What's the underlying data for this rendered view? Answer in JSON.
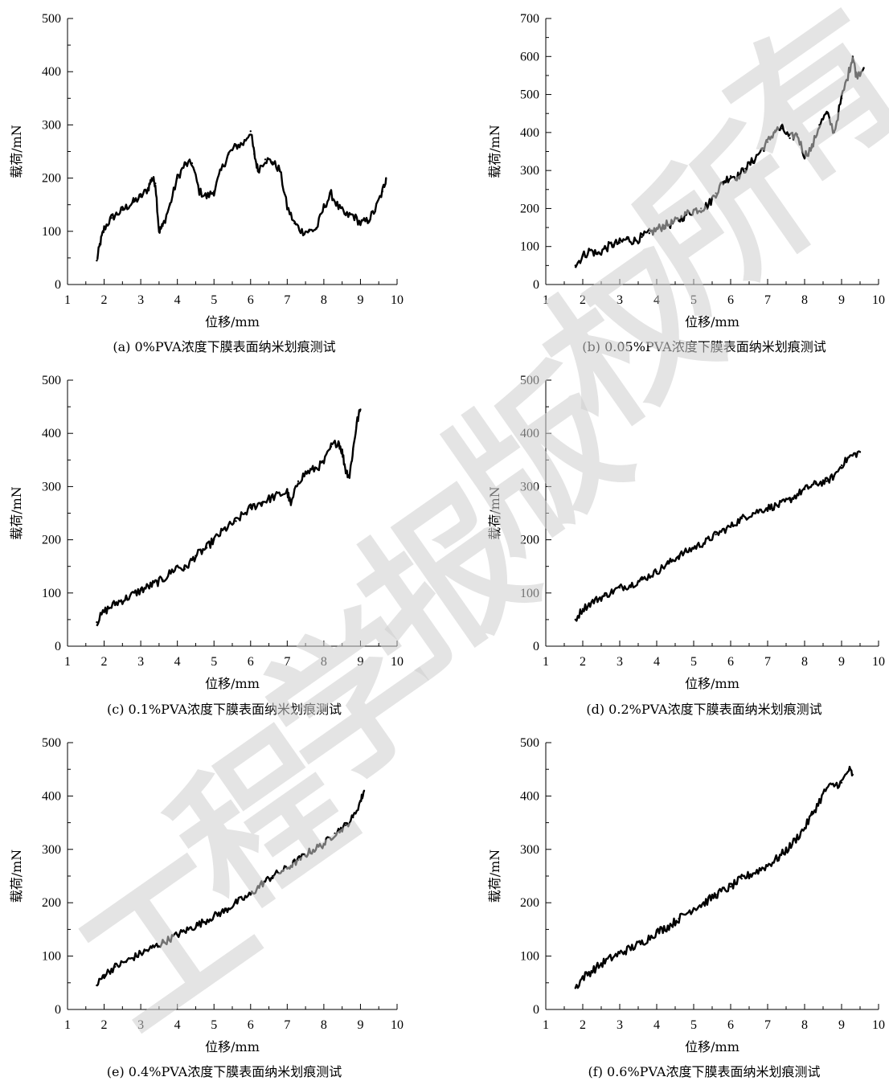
{
  "watermark": {
    "text": "工程学报版权所有",
    "color": "#d0d0d0"
  },
  "chart_data": [
    {
      "type": "line",
      "caption": "(a) 0%PVA浓度下膜表面纳米划痕测试",
      "xlabel": "位移/mm",
      "ylabel": "载荷/mN",
      "xlim": [
        1,
        10
      ],
      "ylim": [
        0,
        500
      ],
      "xticks": [
        1,
        2,
        3,
        4,
        5,
        6,
        7,
        8,
        9,
        10
      ],
      "yticks": [
        0,
        100,
        200,
        300,
        400,
        500
      ],
      "noise": 8,
      "color": "#000000",
      "series": [
        {
          "x": [
            1.8,
            1.9,
            2.0,
            2.2,
            2.5,
            2.8,
            3.0,
            3.2,
            3.3,
            3.4,
            3.5,
            3.6,
            3.8,
            4.0,
            4.2,
            4.4,
            4.6,
            4.8,
            5.0,
            5.2,
            5.4,
            5.6,
            5.8,
            6.0,
            6.1,
            6.2,
            6.4,
            6.6,
            6.8,
            7.0,
            7.2,
            7.4,
            7.6,
            7.8,
            8.0,
            8.2,
            8.4,
            8.6,
            8.8,
            9.0,
            9.2,
            9.4,
            9.6,
            9.7
          ],
          "y": [
            45,
            80,
            105,
            125,
            140,
            155,
            165,
            180,
            200,
            190,
            100,
            110,
            150,
            200,
            225,
            228,
            175,
            165,
            175,
            215,
            245,
            260,
            265,
            288,
            245,
            215,
            235,
            230,
            215,
            145,
            115,
            100,
            100,
            105,
            145,
            170,
            145,
            130,
            130,
            115,
            120,
            140,
            175,
            200
          ]
        }
      ]
    },
    {
      "type": "line",
      "caption": "(b) 0.05%PVA浓度下膜表面纳米划痕测试",
      "xlabel": "位移/mm",
      "ylabel": "载荷/mN",
      "xlim": [
        1,
        10
      ],
      "ylim": [
        0,
        700
      ],
      "xticks": [
        1,
        2,
        3,
        4,
        5,
        6,
        7,
        8,
        9,
        10
      ],
      "yticks": [
        0,
        100,
        200,
        300,
        400,
        500,
        600,
        700
      ],
      "noise": 12,
      "color": "#000000",
      "series": [
        {
          "x": [
            1.8,
            2.0,
            2.2,
            2.4,
            2.6,
            2.8,
            3.0,
            3.2,
            3.4,
            3.6,
            3.8,
            4.0,
            4.2,
            4.4,
            4.6,
            4.8,
            5.0,
            5.2,
            5.4,
            5.6,
            5.8,
            6.0,
            6.2,
            6.4,
            6.6,
            6.8,
            7.0,
            7.2,
            7.4,
            7.6,
            7.8,
            8.0,
            8.2,
            8.4,
            8.6,
            8.8,
            9.0,
            9.2,
            9.3,
            9.4,
            9.6
          ],
          "y": [
            50,
            75,
            90,
            80,
            95,
            105,
            110,
            120,
            115,
            125,
            135,
            145,
            155,
            160,
            170,
            185,
            195,
            200,
            210,
            240,
            270,
            285,
            285,
            305,
            325,
            350,
            375,
            405,
            410,
            385,
            395,
            340,
            360,
            420,
            450,
            400,
            490,
            560,
            600,
            550,
            570
          ]
        }
      ]
    },
    {
      "type": "line",
      "caption": "(c) 0.1%PVA浓度下膜表面纳米划痕测试",
      "xlabel": "位移/mm",
      "ylabel": "载荷/mN",
      "xlim": [
        1,
        10
      ],
      "ylim": [
        0,
        500
      ],
      "xticks": [
        1,
        2,
        3,
        4,
        5,
        6,
        7,
        8,
        9,
        10
      ],
      "yticks": [
        0,
        100,
        200,
        300,
        400,
        500
      ],
      "noise": 8,
      "color": "#000000",
      "series": [
        {
          "x": [
            1.8,
            2.0,
            2.3,
            2.6,
            3.0,
            3.3,
            3.6,
            4.0,
            4.2,
            4.5,
            4.8,
            5.0,
            5.3,
            5.6,
            6.0,
            6.3,
            6.6,
            7.0,
            7.1,
            7.3,
            7.5,
            7.8,
            8.0,
            8.2,
            8.4,
            8.5,
            8.6,
            8.7,
            8.8,
            8.9,
            9.0
          ],
          "y": [
            45,
            65,
            80,
            90,
            105,
            115,
            125,
            150,
            145,
            170,
            185,
            200,
            220,
            235,
            260,
            270,
            280,
            290,
            265,
            310,
            325,
            335,
            345,
            375,
            385,
            365,
            330,
            320,
            370,
            420,
            445
          ]
        }
      ]
    },
    {
      "type": "line",
      "caption": "(d) 0.2%PVA浓度下膜表面纳米划痕测试",
      "xlabel": "位移/mm",
      "ylabel": "载荷/mN",
      "xlim": [
        1,
        10
      ],
      "ylim": [
        0,
        500
      ],
      "xticks": [
        1,
        2,
        3,
        4,
        5,
        6,
        7,
        8,
        9,
        10
      ],
      "yticks": [
        0,
        100,
        200,
        300,
        400,
        500
      ],
      "noise": 7,
      "color": "#000000",
      "series": [
        {
          "x": [
            1.8,
            2.0,
            2.3,
            2.6,
            3.0,
            3.3,
            3.6,
            4.0,
            4.3,
            4.6,
            5.0,
            5.3,
            5.6,
            6.0,
            6.3,
            6.6,
            7.0,
            7.3,
            7.6,
            8.0,
            8.3,
            8.6,
            8.8,
            9.0,
            9.2,
            9.5
          ],
          "y": [
            50,
            70,
            85,
            95,
            110,
            115,
            125,
            140,
            155,
            170,
            185,
            195,
            210,
            225,
            240,
            250,
            260,
            265,
            275,
            295,
            305,
            310,
            320,
            340,
            355,
            365
          ]
        }
      ]
    },
    {
      "type": "line",
      "caption": "(e) 0.4%PVA浓度下膜表面纳米划痕测试",
      "xlabel": "位移/mm",
      "ylabel": "载荷/mN",
      "xlim": [
        1,
        10
      ],
      "ylim": [
        0,
        500
      ],
      "xticks": [
        1,
        2,
        3,
        4,
        5,
        6,
        7,
        8,
        9,
        10
      ],
      "yticks": [
        0,
        100,
        200,
        300,
        400,
        500
      ],
      "noise": 7,
      "color": "#000000",
      "series": [
        {
          "x": [
            1.8,
            2.0,
            2.3,
            2.6,
            3.0,
            3.3,
            3.6,
            4.0,
            4.3,
            4.6,
            5.0,
            5.3,
            5.6,
            6.0,
            6.3,
            6.6,
            7.0,
            7.3,
            7.6,
            8.0,
            8.3,
            8.6,
            8.8,
            9.0,
            9.1
          ],
          "y": [
            45,
            65,
            80,
            90,
            105,
            115,
            125,
            140,
            150,
            160,
            175,
            185,
            200,
            215,
            235,
            250,
            265,
            280,
            295,
            310,
            330,
            345,
            360,
            390,
            410
          ]
        }
      ]
    },
    {
      "type": "line",
      "caption": "(f) 0.6%PVA浓度下膜表面纳米划痕测试",
      "xlabel": "位移/mm",
      "ylabel": "载荷/mN",
      "xlim": [
        1,
        10
      ],
      "ylim": [
        0,
        500
      ],
      "xticks": [
        1,
        2,
        3,
        4,
        5,
        6,
        7,
        8,
        9,
        10
      ],
      "yticks": [
        0,
        100,
        200,
        300,
        400,
        500
      ],
      "noise": 8,
      "color": "#000000",
      "series": [
        {
          "x": [
            1.8,
            2.0,
            2.3,
            2.6,
            3.0,
            3.3,
            3.6,
            4.0,
            4.3,
            4.6,
            5.0,
            5.3,
            5.6,
            6.0,
            6.3,
            6.6,
            7.0,
            7.3,
            7.6,
            8.0,
            8.2,
            8.4,
            8.6,
            8.8,
            9.0,
            9.2,
            9.3
          ],
          "y": [
            40,
            60,
            75,
            90,
            105,
            115,
            125,
            145,
            155,
            170,
            190,
            200,
            215,
            230,
            245,
            255,
            270,
            285,
            305,
            340,
            365,
            390,
            415,
            420,
            425,
            450,
            440
          ]
        }
      ]
    }
  ]
}
